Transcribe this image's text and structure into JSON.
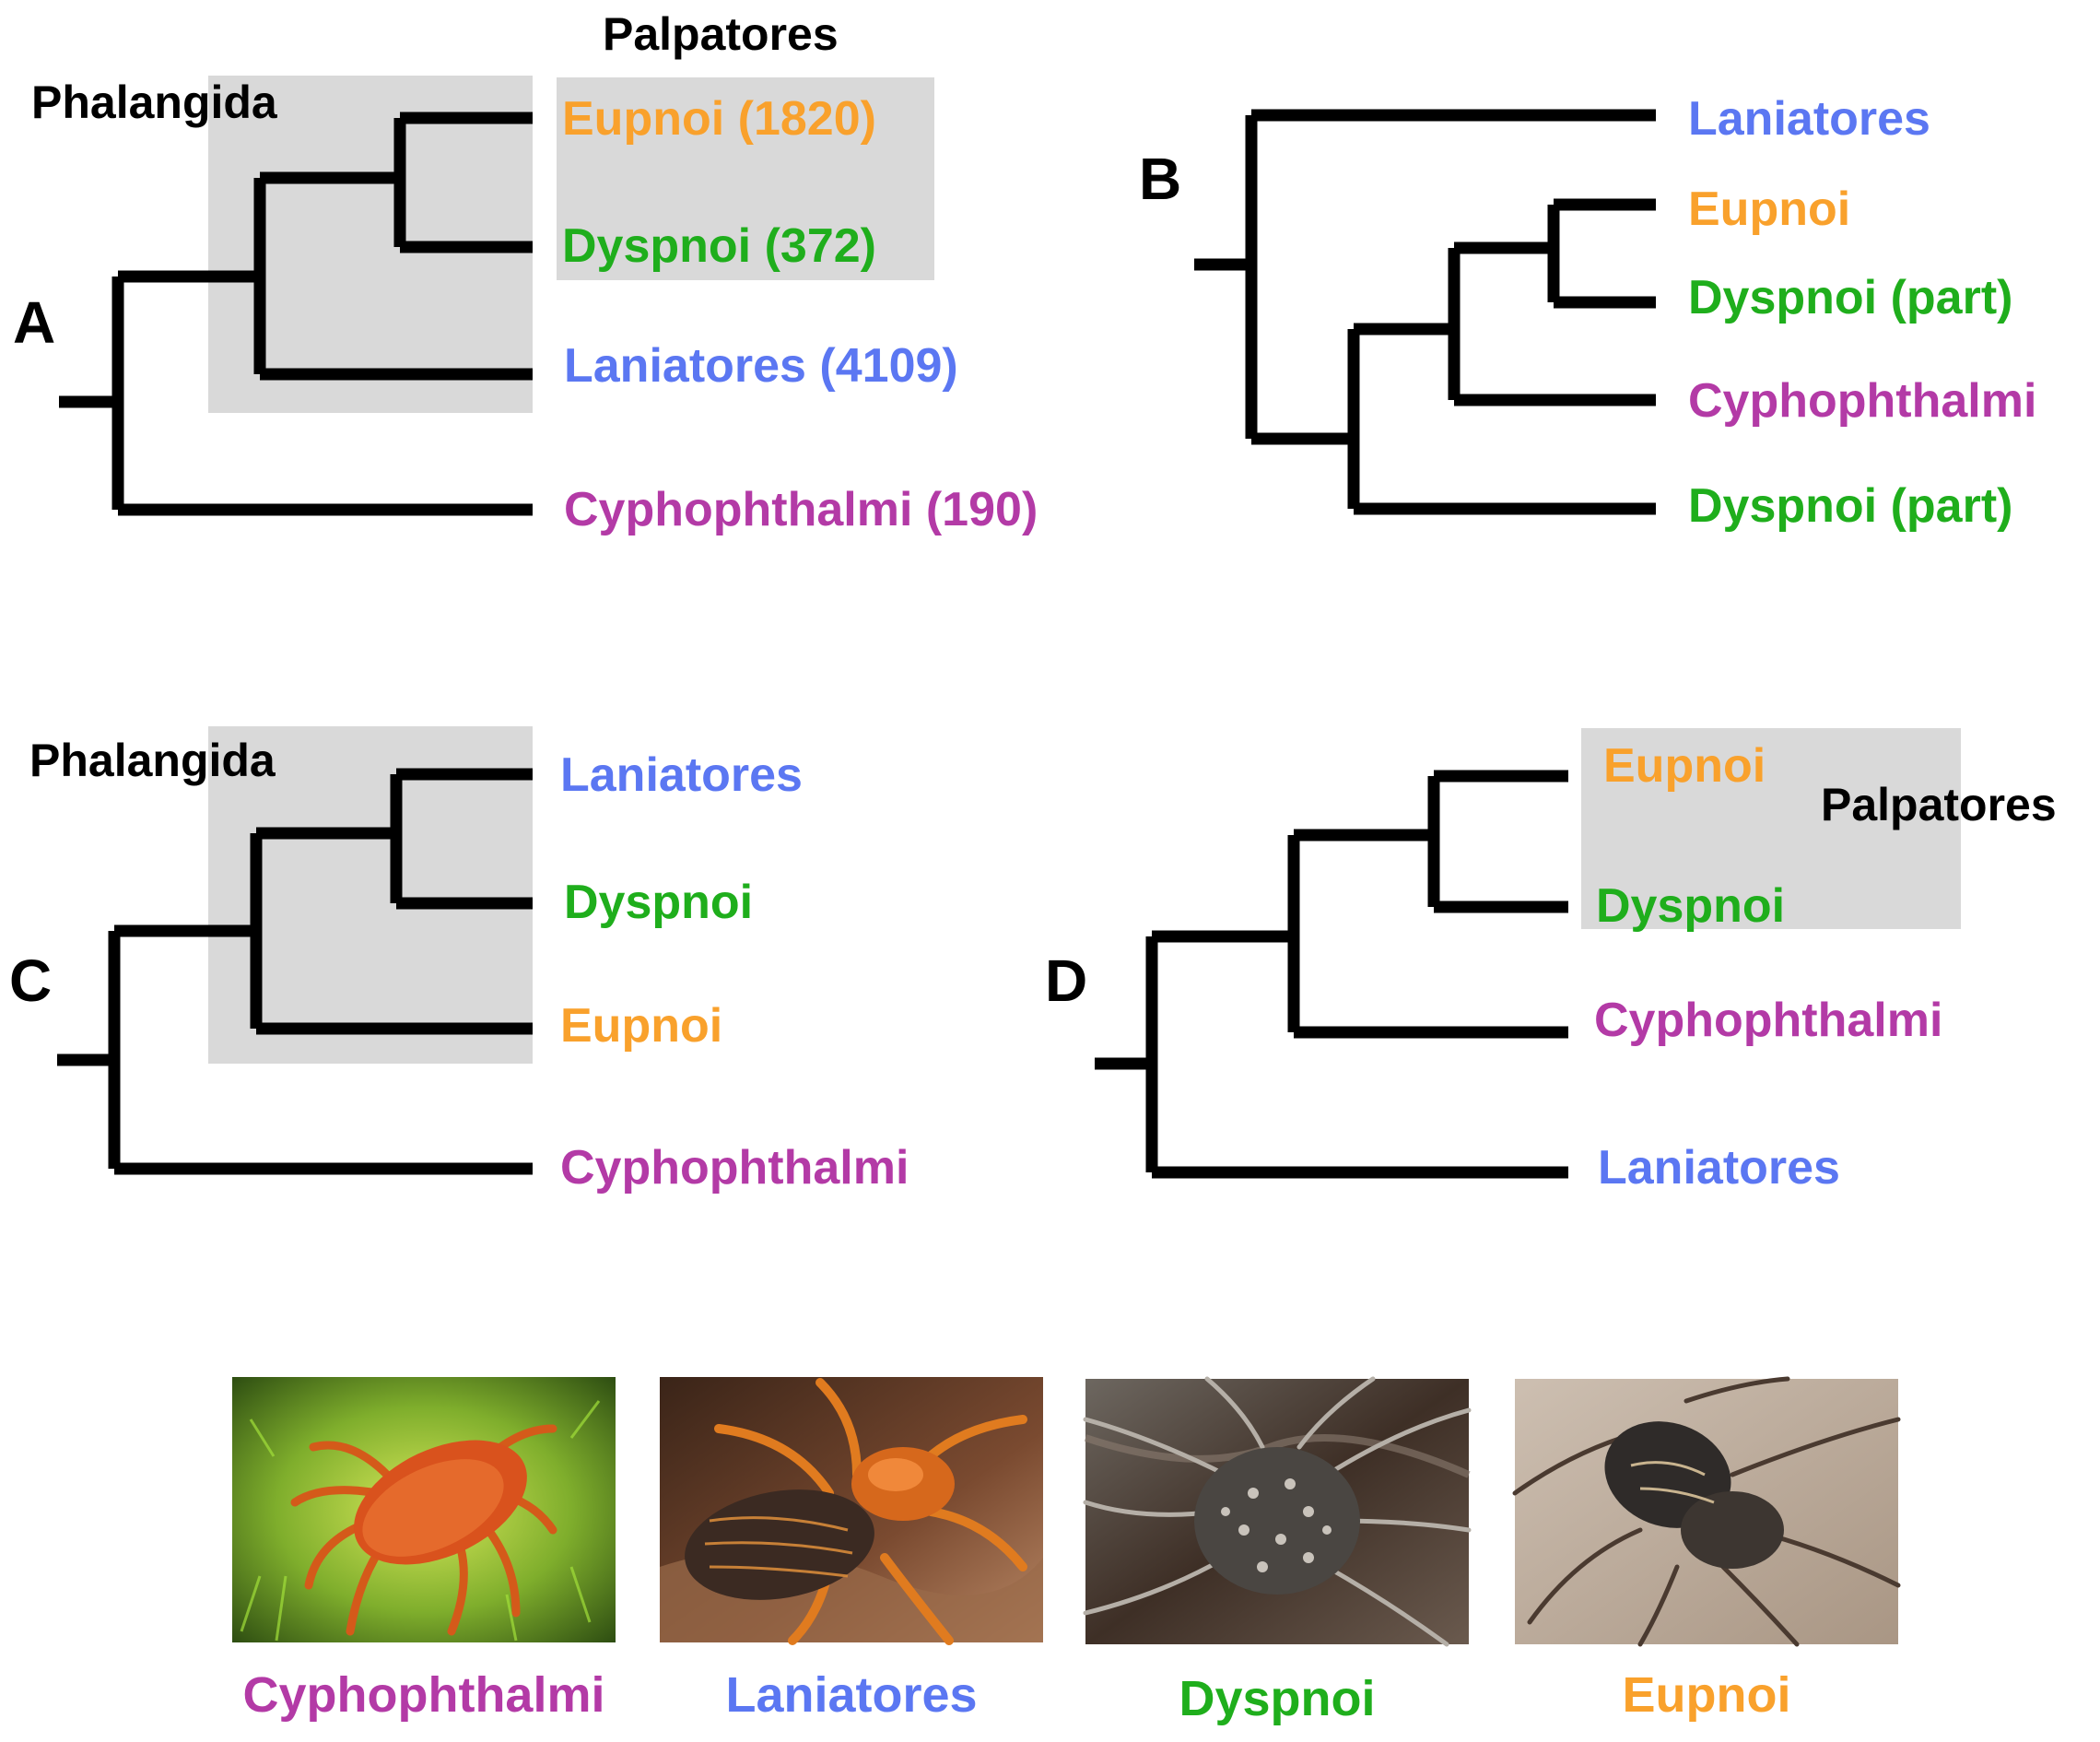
{
  "colors": {
    "eupnoi": "#f9a12c",
    "dyspnoi": "#1fae1c",
    "laniatores": "#5b77f2",
    "cyphophthalmi": "#b33aa6",
    "branch": "#000000",
    "box": "#d9d9d9"
  },
  "panels": {
    "A": {
      "letter": "A",
      "clade_left": "Phalangida",
      "clade_right": "Palpatores",
      "taxa": [
        "Eupnoi (1820)",
        "Dyspnoi (372)",
        "Laniatores (4109)",
        "Cyphophthalmi (190)"
      ]
    },
    "B": {
      "letter": "B",
      "taxa": [
        "Laniatores",
        "Eupnoi",
        "Dyspnoi (part)",
        "Cyphophthalmi",
        "Dyspnoi (part)"
      ]
    },
    "C": {
      "letter": "C",
      "clade_left": "Phalangida",
      "taxa": [
        "Laniatores",
        "Dyspnoi",
        "Eupnoi",
        "Cyphophthalmi"
      ]
    },
    "D": {
      "letter": "D",
      "clade_right": "Palpatores",
      "taxa": [
        "Eupnoi",
        "Dyspnoi",
        "Cyphophthalmi",
        "Laniatores"
      ]
    }
  },
  "photos": [
    {
      "caption": "Cyphophthalmi",
      "icon": "cyphophthalmi-photo"
    },
    {
      "caption": "Laniatores",
      "icon": "laniatores-photo"
    },
    {
      "caption": "Dyspnoi",
      "icon": "dyspnoi-photo"
    },
    {
      "caption": "Eupnoi",
      "icon": "eupnoi-photo"
    }
  ]
}
